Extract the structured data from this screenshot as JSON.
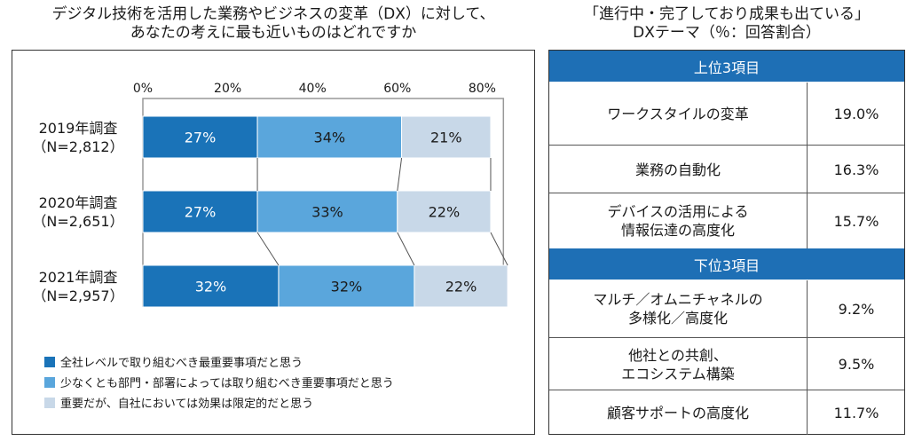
{
  "left_title_line1": "デジタル技術を活用した業務やビジネスの変革（DX）に対して、",
  "left_title_line2": "あなたの考えに最も近いものはどれですか",
  "right_title_line1": "「進行中・完了しており成果も出ている」",
  "right_title_line2": "DXテーマ（％：回答割合）",
  "chart_data": {
    "type": "bar",
    "orientation": "horizontal-stacked",
    "categories": [
      "2019年調査\n（N=2,812）",
      "2020年調査\n（N=2,651）",
      "2021年調査\n（N=2,957）"
    ],
    "x_ticks": [
      "0%",
      "20%",
      "40%",
      "60%",
      "80%"
    ],
    "xlim": [
      0,
      85
    ],
    "series": [
      {
        "name": "全社レベルで取り組むべき最重要事項だと思う",
        "values": [
          27,
          27,
          32
        ],
        "labels": [
          "27%",
          "27%",
          "32%"
        ],
        "color": "#1a73b8"
      },
      {
        "name": "少なくとも部門・部署によっては取り組むべき重要事項だと思う",
        "values": [
          34,
          33,
          32
        ],
        "labels": [
          "34%",
          "33%",
          "32%"
        ],
        "color": "#5aa6dc"
      },
      {
        "name": "重要だが、自社においては効果は限定的だと思う",
        "values": [
          21,
          22,
          22
        ],
        "labels": [
          "21%",
          "22%",
          "22%"
        ],
        "color": "#c8d8e8"
      }
    ],
    "connector_lines": true
  },
  "table": {
    "top_header": "上位3項目",
    "top_rows": [
      {
        "label": "ワークスタイルの変革",
        "value": "19.0%"
      },
      {
        "label": "業務の自動化",
        "value": "16.3%"
      },
      {
        "label": "デバイスの活用による\n情報伝達の高度化",
        "value": "15.7%"
      }
    ],
    "bottom_header": "下位3項目",
    "bottom_rows": [
      {
        "label": "マルチ／オムニチャネルの\n多様化／高度化",
        "value": "9.2%"
      },
      {
        "label": "他社との共創、\nエコシステム構築",
        "value": "9.5%"
      },
      {
        "label": "顧客サポートの高度化",
        "value": "11.7%"
      }
    ]
  }
}
